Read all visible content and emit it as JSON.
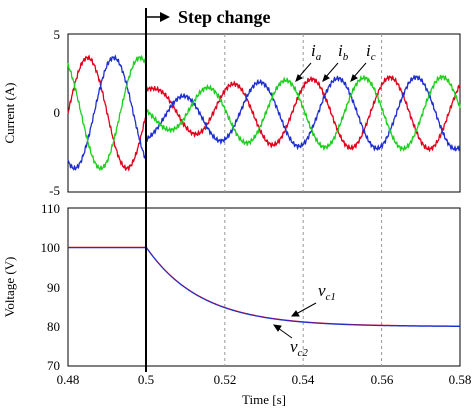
{
  "chart_data": [
    {
      "type": "line",
      "ylabel": "Current (A)",
      "xlim": [
        0.48,
        0.58
      ],
      "ylim": [
        -5,
        5
      ],
      "yticks": [
        5,
        0,
        -5
      ],
      "grid": "dashed vertical gridlines at x ticks",
      "series": [
        {
          "name": "i_a",
          "label_main": "i",
          "label_sub": "a",
          "color": "#e0001b",
          "pre_amplitude": 3.5,
          "post_amplitude": 2.3,
          "frequency_hz": 50,
          "phase_deg": 0
        },
        {
          "name": "i_b",
          "label_main": "i",
          "label_sub": "b",
          "color": "#1f2fcf",
          "pre_amplitude": 3.5,
          "post_amplitude": 2.3,
          "frequency_hz": 50,
          "phase_deg": -120
        },
        {
          "name": "i_c",
          "label_main": "i",
          "label_sub": "c",
          "color": "#1fcf1f",
          "pre_amplitude": 3.5,
          "post_amplitude": 2.3,
          "frequency_hz": 50,
          "phase_deg": 120
        }
      ]
    },
    {
      "type": "line",
      "xlabel": "Time [s]",
      "ylabel": "Voltage  (V)",
      "xlim": [
        0.48,
        0.58
      ],
      "ylim": [
        70,
        110
      ],
      "yticks": [
        110,
        100,
        90,
        80,
        70
      ],
      "xticks": [
        0.48,
        0.5,
        0.52,
        0.54,
        0.56,
        0.58
      ],
      "xtick_labels": [
        "0.48",
        "0.5",
        "0.52",
        "0.54",
        "0.56",
        "0.58"
      ],
      "grid": "dashed vertical gridlines at x ticks",
      "series": [
        {
          "name": "v_c1",
          "label_main": "v",
          "label_sub": "c1",
          "color": "#e0001b",
          "initial": 100,
          "final": 80,
          "time_constant_s": 0.014
        },
        {
          "name": "v_c2",
          "label_main": "v",
          "label_sub": "c2",
          "color": "#1f2fcf",
          "initial": 100,
          "final": 80,
          "time_constant_s": 0.014
        }
      ]
    }
  ],
  "annotation": {
    "text": "Step change",
    "x": 0.5
  }
}
